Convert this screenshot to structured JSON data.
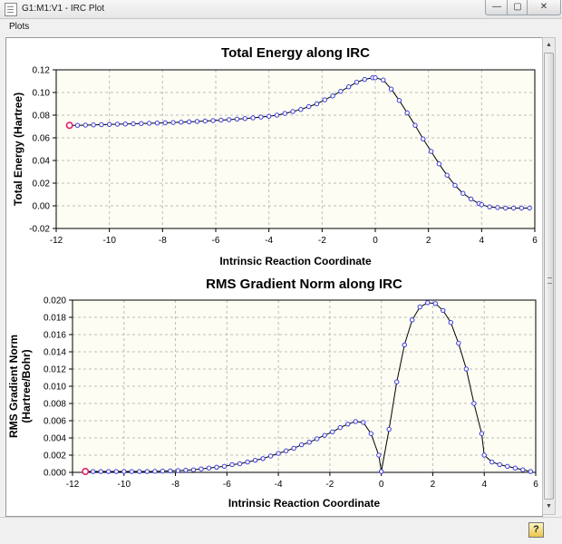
{
  "window": {
    "title": "G1:M1:V1 - IRC Plot",
    "minimize_glyph": "—",
    "maximize_glyph": "▢",
    "close_glyph": "✕"
  },
  "menu": {
    "plots_label": "Plots"
  },
  "icons": {
    "app": "document-icon",
    "help": "help-icon"
  },
  "help_glyph": "?",
  "chart_data": [
    {
      "type": "line",
      "title": "Total Energy along IRC",
      "xlabel": "Intrinsic Reaction Coordinate",
      "ylabel_lines": [
        "Total Energy (Hartree)"
      ],
      "xlim": [
        -12,
        6
      ],
      "ylim": [
        -0.02,
        0.12
      ],
      "xticks": [
        -12,
        -10,
        -8,
        -6,
        -4,
        -2,
        0,
        2,
        4,
        6
      ],
      "yticks": [
        -0.02,
        0.0,
        0.02,
        0.04,
        0.06,
        0.08,
        0.1,
        0.12
      ],
      "ytick_decimals": 2,
      "grid": true,
      "line_color": "#000000",
      "marker_color": "#3a3ad8",
      "highlight_color": "#e0206a",
      "highlight_index": 0,
      "x": [
        -11.5,
        -11.2,
        -10.9,
        -10.6,
        -10.3,
        -10.0,
        -9.7,
        -9.4,
        -9.1,
        -8.8,
        -8.5,
        -8.2,
        -7.9,
        -7.6,
        -7.3,
        -7.0,
        -6.7,
        -6.4,
        -6.1,
        -5.8,
        -5.5,
        -5.2,
        -4.9,
        -4.6,
        -4.3,
        -4.0,
        -3.7,
        -3.4,
        -3.1,
        -2.8,
        -2.5,
        -2.2,
        -1.9,
        -1.6,
        -1.3,
        -1.0,
        -0.7,
        -0.4,
        -0.1,
        0.0,
        0.3,
        0.6,
        0.9,
        1.2,
        1.5,
        1.8,
        2.1,
        2.4,
        2.7,
        3.0,
        3.3,
        3.6,
        3.9,
        4.0,
        4.3,
        4.6,
        4.9,
        5.2,
        5.5,
        5.8
      ],
      "y": [
        0.071,
        0.071,
        0.0712,
        0.0714,
        0.0716,
        0.0718,
        0.072,
        0.0722,
        0.0724,
        0.0726,
        0.0728,
        0.073,
        0.0732,
        0.0735,
        0.0738,
        0.0741,
        0.0744,
        0.0748,
        0.0752,
        0.0756,
        0.076,
        0.0765,
        0.077,
        0.0776,
        0.0783,
        0.079,
        0.08,
        0.0815,
        0.0832,
        0.085,
        0.0875,
        0.09,
        0.0935,
        0.097,
        0.101,
        0.105,
        0.109,
        0.1115,
        0.113,
        0.113,
        0.111,
        0.103,
        0.093,
        0.082,
        0.071,
        0.059,
        0.048,
        0.037,
        0.027,
        0.018,
        0.011,
        0.006,
        0.002,
        0.001,
        -0.001,
        -0.0015,
        -0.002,
        -0.002,
        -0.002,
        -0.002
      ]
    },
    {
      "type": "line",
      "title": "RMS Gradient Norm along IRC",
      "xlabel": "Intrinsic Reaction Coordinate",
      "ylabel_lines": [
        "RMS Gradient Norm",
        "(Hartree/Bohr)"
      ],
      "xlim": [
        -12,
        6
      ],
      "ylim": [
        0,
        0.02
      ],
      "xticks": [
        -12,
        -10,
        -8,
        -6,
        -4,
        -2,
        0,
        2,
        4,
        6
      ],
      "yticks": [
        0.0,
        0.002,
        0.004,
        0.006,
        0.008,
        0.01,
        0.012,
        0.014,
        0.016,
        0.018,
        0.02
      ],
      "ytick_decimals": 3,
      "grid": true,
      "line_color": "#000000",
      "marker_color": "#3a3ad8",
      "highlight_color": "#e0206a",
      "highlight_index": 0,
      "x": [
        -11.5,
        -11.2,
        -10.9,
        -10.6,
        -10.3,
        -10.0,
        -9.7,
        -9.4,
        -9.1,
        -8.8,
        -8.5,
        -8.2,
        -7.9,
        -7.6,
        -7.3,
        -7.0,
        -6.7,
        -6.4,
        -6.1,
        -5.8,
        -5.5,
        -5.2,
        -4.9,
        -4.6,
        -4.3,
        -4.0,
        -3.7,
        -3.4,
        -3.1,
        -2.8,
        -2.5,
        -2.2,
        -1.9,
        -1.6,
        -1.3,
        -1.0,
        -0.7,
        -0.4,
        -0.1,
        0.0,
        0.3,
        0.6,
        0.9,
        1.2,
        1.5,
        1.8,
        2.1,
        2.4,
        2.7,
        3.0,
        3.3,
        3.6,
        3.9,
        4.0,
        4.3,
        4.6,
        4.9,
        5.2,
        5.5,
        5.8
      ],
      "y": [
        0.0001,
        0.0001,
        0.0001,
        0.0001,
        0.0001,
        0.0001,
        0.0001,
        0.0001,
        0.0001,
        0.00012,
        0.00015,
        0.00018,
        0.0002,
        0.00025,
        0.0003,
        0.0004,
        0.0005,
        0.0006,
        0.0007,
        0.0009,
        0.001,
        0.0012,
        0.0014,
        0.0016,
        0.0019,
        0.0022,
        0.0025,
        0.0028,
        0.0032,
        0.0035,
        0.0039,
        0.0043,
        0.0047,
        0.0052,
        0.0056,
        0.0059,
        0.0058,
        0.0045,
        0.002,
        0.0001,
        0.005,
        0.0105,
        0.0148,
        0.0177,
        0.0192,
        0.0197,
        0.0196,
        0.0188,
        0.0174,
        0.015,
        0.012,
        0.008,
        0.0045,
        0.002,
        0.0012,
        0.0009,
        0.0007,
        0.0005,
        0.0003,
        0.0001
      ]
    }
  ]
}
